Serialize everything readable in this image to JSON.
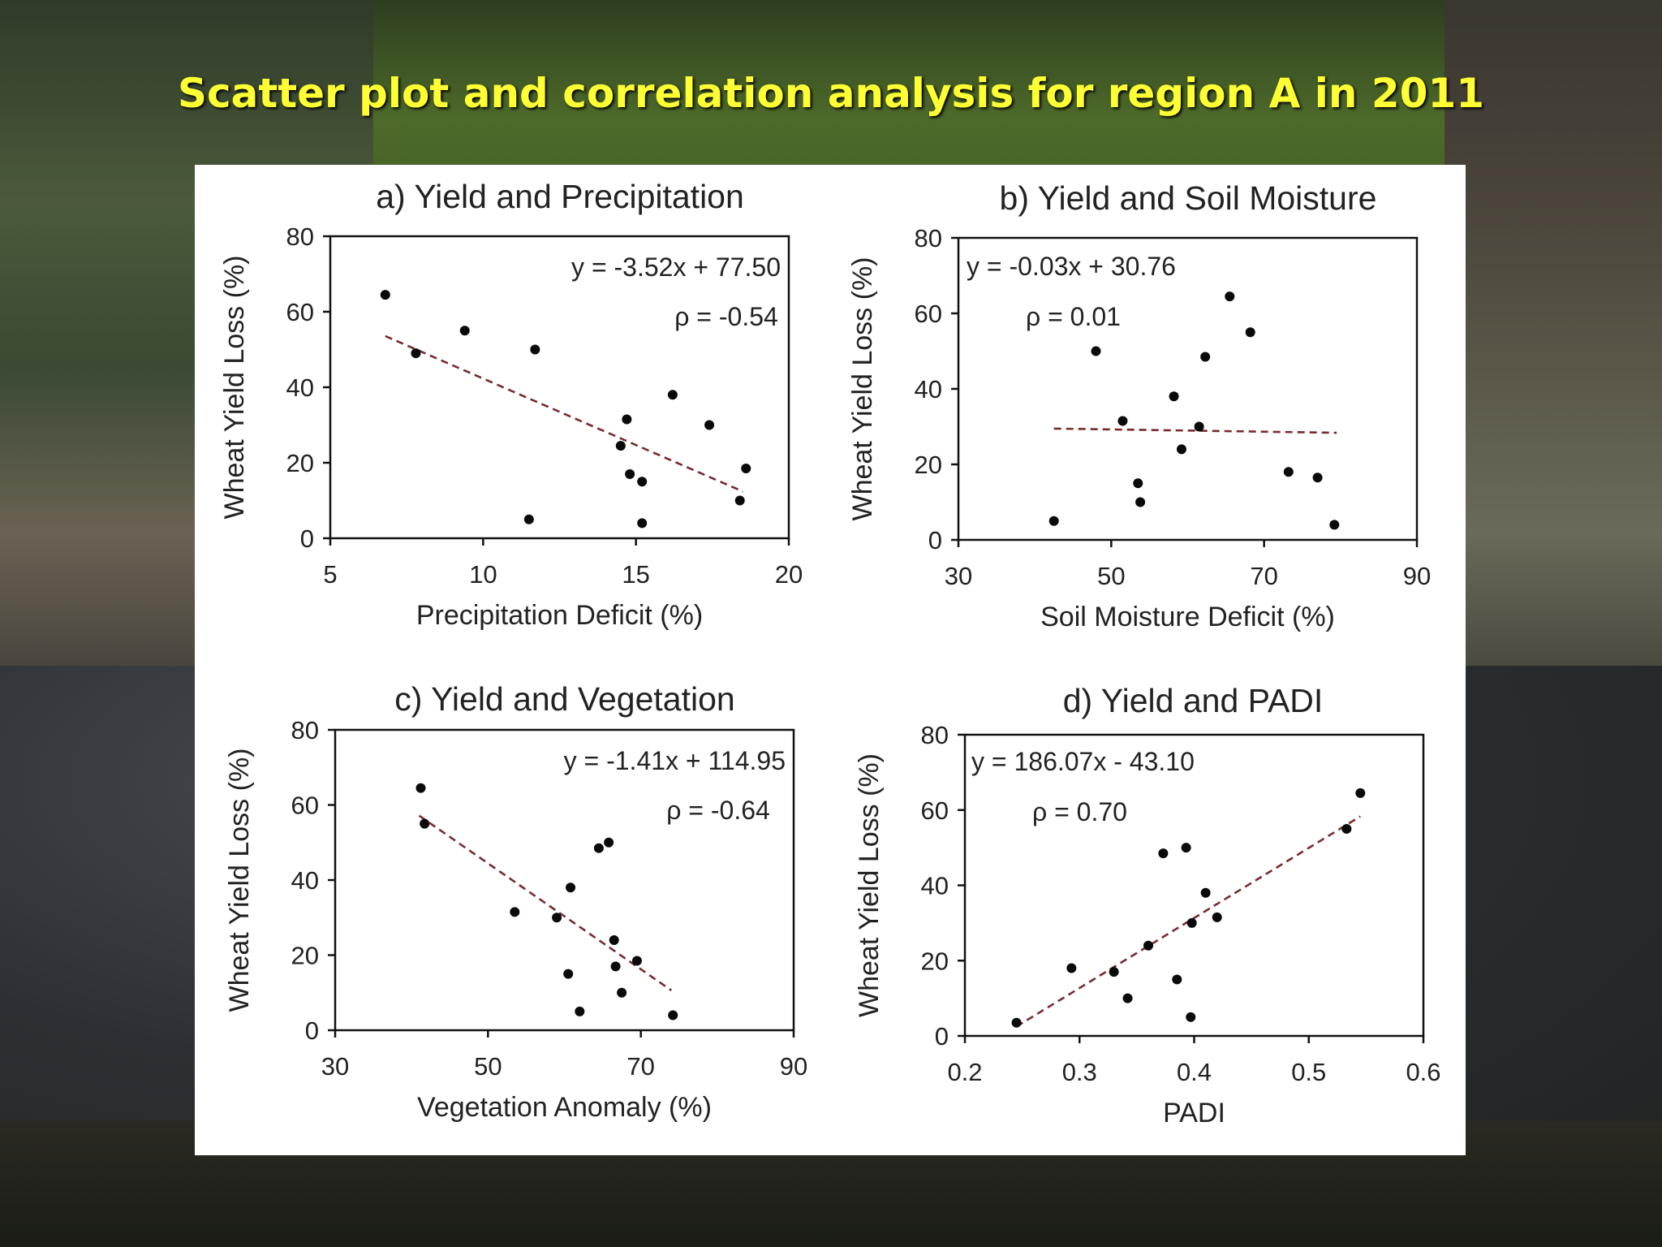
{
  "slide_title": "Scatter plot and correlation analysis for region A in 2011",
  "chart_data": [
    {
      "type": "scatter",
      "title": "a) Yield and Precipitation",
      "xlabel": "Precipitation Deficit (%)",
      "ylabel": "Wheat Yield Loss (%)",
      "xlim": [
        5,
        20
      ],
      "ylim": [
        0,
        80
      ],
      "xticks": [
        "5",
        "10",
        "15",
        "20"
      ],
      "yticks": [
        "0",
        "20",
        "40",
        "60",
        "80"
      ],
      "equation": "y = -3.52x + 77.50",
      "correlation": "ρ = -0.54",
      "points": [
        [
          6.8,
          64.5
        ],
        [
          7.8,
          49
        ],
        [
          9.4,
          55
        ],
        [
          11.5,
          5
        ],
        [
          11.7,
          50
        ],
        [
          14.5,
          24.5
        ],
        [
          14.7,
          31.5
        ],
        [
          14.8,
          17
        ],
        [
          15.2,
          15
        ],
        [
          15.2,
          4
        ],
        [
          16.2,
          38
        ],
        [
          17.4,
          30
        ],
        [
          18.4,
          10
        ],
        [
          18.6,
          18.5
        ]
      ],
      "trendline": {
        "slope": -3.52,
        "intercept": 77.5,
        "x_range": [
          6.8,
          18.5
        ]
      }
    },
    {
      "type": "scatter",
      "title": "b) Yield and Soil Moisture",
      "xlabel": "Soil Moisture Deficit (%)",
      "ylabel": "Wheat Yield Loss (%)",
      "xlim": [
        30,
        90
      ],
      "ylim": [
        0,
        80
      ],
      "xticks": [
        "30",
        "50",
        "70",
        "90"
      ],
      "yticks": [
        "0",
        "20",
        "40",
        "60",
        "80"
      ],
      "equation": "y = -0.03x + 30.76",
      "correlation": "ρ = 0.01",
      "points": [
        [
          42.5,
          5
        ],
        [
          48,
          50
        ],
        [
          51.5,
          31.5
        ],
        [
          53.5,
          15
        ],
        [
          53.8,
          10
        ],
        [
          58.2,
          38
        ],
        [
          59.2,
          24
        ],
        [
          61.5,
          30
        ],
        [
          62.3,
          48.5
        ],
        [
          65.5,
          64.5
        ],
        [
          68.2,
          55
        ],
        [
          73.2,
          18
        ],
        [
          77,
          16.5
        ],
        [
          79.2,
          4
        ]
      ],
      "trendline": {
        "slope": -0.03,
        "intercept": 30.76,
        "x_range": [
          42.5,
          79.5
        ]
      }
    },
    {
      "type": "scatter",
      "title": "c) Yield and Vegetation",
      "xlabel": "Vegetation Anomaly (%)",
      "ylabel": "Wheat Yield Loss (%)",
      "xlim": [
        30,
        90
      ],
      "ylim": [
        0,
        80
      ],
      "xticks": [
        "30",
        "50",
        "70",
        "90"
      ],
      "yticks": [
        "0",
        "20",
        "40",
        "60",
        "80"
      ],
      "equation": "y = -1.41x + 114.95",
      "correlation": "ρ = -0.64",
      "points": [
        [
          41.2,
          64.5
        ],
        [
          41.7,
          55
        ],
        [
          53.5,
          31.5
        ],
        [
          59,
          30
        ],
        [
          60.5,
          15
        ],
        [
          60.8,
          38
        ],
        [
          62,
          5
        ],
        [
          64.5,
          48.5
        ],
        [
          65.8,
          50
        ],
        [
          66.5,
          24
        ],
        [
          66.7,
          17
        ],
        [
          67.5,
          10
        ],
        [
          69.5,
          18.5
        ],
        [
          74.2,
          4
        ]
      ],
      "trendline": {
        "slope": -1.41,
        "intercept": 114.95,
        "x_range": [
          41,
          74
        ]
      }
    },
    {
      "type": "scatter",
      "title": "d) Yield and PADI",
      "xlabel": "PADI",
      "ylabel": "Wheat Yield Loss (%)",
      "xlim": [
        0.2,
        0.6
      ],
      "ylim": [
        0,
        80
      ],
      "xticks": [
        "0.2",
        "0.3",
        "0.4",
        "0.5",
        "0.6"
      ],
      "yticks": [
        "0",
        "20",
        "40",
        "60",
        "80"
      ],
      "equation": "y = 186.07x - 43.10",
      "correlation": "ρ = 0.70",
      "points": [
        [
          0.245,
          3.5
        ],
        [
          0.293,
          18
        ],
        [
          0.33,
          17
        ],
        [
          0.342,
          10
        ],
        [
          0.36,
          24
        ],
        [
          0.373,
          48.5
        ],
        [
          0.385,
          15
        ],
        [
          0.393,
          50
        ],
        [
          0.397,
          5
        ],
        [
          0.398,
          30
        ],
        [
          0.41,
          38
        ],
        [
          0.42,
          31.5
        ],
        [
          0.533,
          55
        ],
        [
          0.545,
          64.5
        ]
      ],
      "trendline": {
        "slope": 186.07,
        "intercept": -43.1,
        "x_range": [
          0.245,
          0.545
        ]
      }
    }
  ]
}
